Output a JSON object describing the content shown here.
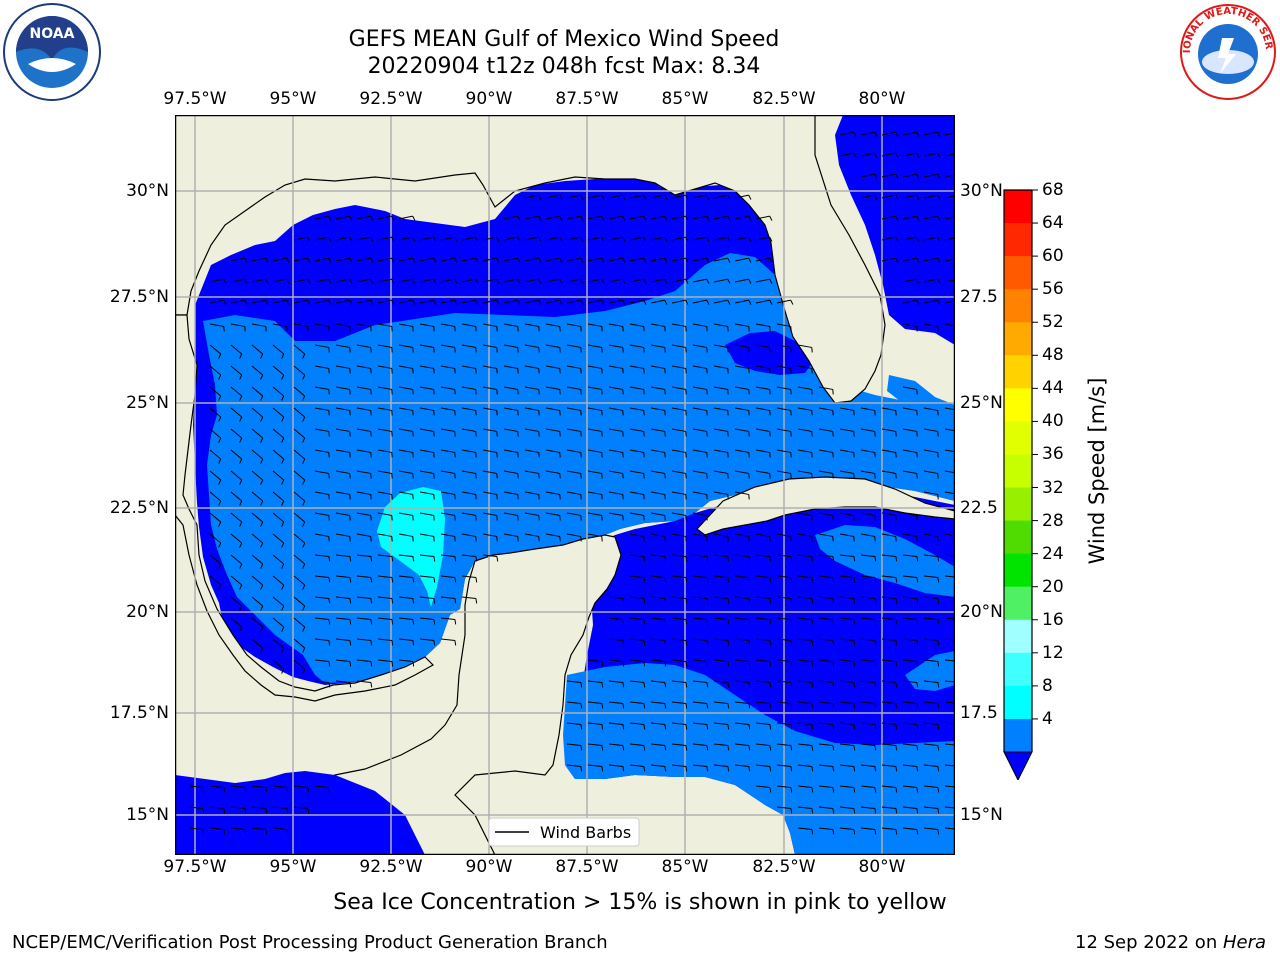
{
  "title": {
    "line1": "GEFS MEAN Gulf of Mexico Wind Speed",
    "line2": "20220904 t12z 048h fcst   Max: 8.34"
  },
  "map": {
    "lon_labels": [
      "97.5°W",
      "95°W",
      "92.5°W",
      "90°W",
      "87.5°W",
      "85°W",
      "82.5°W",
      "80°W"
    ],
    "lat_labels": [
      "30°N",
      "27.5°N",
      "25°N",
      "22.5°N",
      "20°N",
      "17.5°N",
      "15°N"
    ],
    "lat_labels_right": [
      "30°N",
      "27.5",
      "25°N",
      "22.5",
      "20°N",
      "17.5",
      "15°N"
    ],
    "legend_label": "Wind Barbs",
    "colors": {
      "land": "#efefde",
      "band_4_8": "#0000ff",
      "band_8_12": "#0080ff",
      "band_12_16": "#00ffff"
    }
  },
  "colorbar": {
    "label": "Wind Speed [m/s]",
    "ticks": [
      "68",
      "64",
      "60",
      "56",
      "52",
      "48",
      "44",
      "40",
      "36",
      "32",
      "28",
      "24",
      "20",
      "16",
      "12",
      "8",
      "4"
    ],
    "colors": [
      "#ff0000",
      "#ff2800",
      "#ff5a00",
      "#ff8200",
      "#ffaa00",
      "#ffd200",
      "#ffff00",
      "#e1ff00",
      "#c8ff00",
      "#96f000",
      "#50dc00",
      "#00e400",
      "#50f064",
      "#a0ffff",
      "#40ffff",
      "#00ffff",
      "#0080ff"
    ],
    "extend_color": "#0000ff"
  },
  "note": "Sea Ice Concentration > 15% is shown in pink to yellow",
  "footer": {
    "left": "NCEP/EMC/Verification Post Processing Product Generation Branch",
    "right_date": "12 Sep 2022 on ",
    "right_host": "Hera"
  },
  "logos": {
    "noaa": "NOAA",
    "nws": "NATIONAL WEATHER SERVICE"
  }
}
